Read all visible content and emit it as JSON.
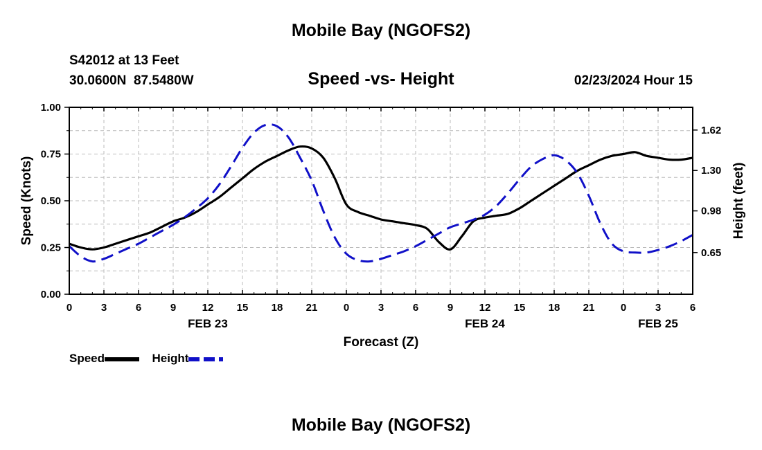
{
  "page": {
    "title": "Mobile Bay (NGOFS2)",
    "bottom_title": "Mobile Bay (NGOFS2)",
    "station": "S42012 at 13 Feet",
    "coords": "30.0600N  87.5480W",
    "chart_title": "Speed -vs- Height",
    "datetime": "02/23/2024 Hour 15"
  },
  "chart_data": {
    "type": "line",
    "title": "Speed -vs- Height",
    "xlabel": "Forecast (Z)",
    "ylabel": "Speed (Knots)",
    "y2label": "Height (feet)",
    "x_unit": "forecast hour",
    "xlim": [
      0,
      54
    ],
    "ylim": [
      0,
      1.0
    ],
    "y2lim": [
      0.32,
      1.8
    ],
    "yticks": [
      "0.00",
      "0.25",
      "0.50",
      "0.75",
      "1.00"
    ],
    "y2ticks": [
      "0.65",
      "0.98",
      "1.30",
      "1.62"
    ],
    "xticks": [
      "0",
      "3",
      "6",
      "9",
      "12",
      "15",
      "18",
      "21",
      "0",
      "3",
      "6",
      "9",
      "12",
      "15",
      "18",
      "21",
      "0",
      "3",
      "6"
    ],
    "date_labels": [
      {
        "label": "FEB 23",
        "hour": 12
      },
      {
        "label": "FEB 24",
        "hour": 36
      },
      {
        "label": "FEB 25",
        "hour": 51
      }
    ],
    "grid": true,
    "legend_position": "bottom-left",
    "series": [
      {
        "name": "Speed",
        "axis": "left",
        "color": "#000000",
        "style": "solid",
        "x": [
          0,
          1,
          2,
          3,
          4,
          5,
          6,
          7,
          8,
          9,
          10,
          11,
          12,
          13,
          14,
          15,
          16,
          17,
          18,
          19,
          20,
          21,
          22,
          23,
          24,
          25,
          26,
          27,
          28,
          29,
          30,
          31,
          32,
          33,
          34,
          35,
          36,
          37,
          38,
          39,
          40,
          41,
          42,
          43,
          44,
          45,
          46,
          47,
          48,
          49,
          50,
          51,
          52,
          53,
          54
        ],
        "values": [
          0.27,
          0.25,
          0.24,
          0.25,
          0.27,
          0.29,
          0.31,
          0.33,
          0.36,
          0.39,
          0.41,
          0.44,
          0.48,
          0.52,
          0.57,
          0.62,
          0.67,
          0.71,
          0.74,
          0.77,
          0.79,
          0.78,
          0.73,
          0.62,
          0.48,
          0.44,
          0.42,
          0.4,
          0.39,
          0.38,
          0.37,
          0.35,
          0.28,
          0.24,
          0.31,
          0.39,
          0.41,
          0.42,
          0.43,
          0.46,
          0.5,
          0.54,
          0.58,
          0.62,
          0.66,
          0.69,
          0.72,
          0.74,
          0.75,
          0.76,
          0.74,
          0.73,
          0.72,
          0.72,
          0.73
        ]
      },
      {
        "name": "Height",
        "axis": "right",
        "color": "#1010c8",
        "style": "dashed",
        "x": [
          0,
          1,
          2,
          3,
          4,
          5,
          6,
          7,
          8,
          9,
          10,
          11,
          12,
          13,
          14,
          15,
          16,
          17,
          18,
          19,
          20,
          21,
          22,
          23,
          24,
          25,
          26,
          27,
          28,
          29,
          30,
          31,
          32,
          33,
          34,
          35,
          36,
          37,
          38,
          39,
          40,
          41,
          42,
          43,
          44,
          45,
          46,
          47,
          48,
          49,
          50,
          51,
          52,
          53,
          54
        ],
        "values": [
          0.7,
          0.62,
          0.58,
          0.6,
          0.64,
          0.68,
          0.72,
          0.77,
          0.82,
          0.87,
          0.93,
          1.0,
          1.08,
          1.19,
          1.33,
          1.48,
          1.6,
          1.66,
          1.65,
          1.56,
          1.4,
          1.22,
          0.98,
          0.77,
          0.64,
          0.59,
          0.58,
          0.6,
          0.63,
          0.66,
          0.7,
          0.75,
          0.8,
          0.85,
          0.88,
          0.91,
          0.95,
          1.02,
          1.12,
          1.23,
          1.33,
          1.39,
          1.42,
          1.38,
          1.28,
          1.1,
          0.88,
          0.72,
          0.66,
          0.65,
          0.65,
          0.67,
          0.7,
          0.74,
          0.79
        ]
      }
    ]
  }
}
